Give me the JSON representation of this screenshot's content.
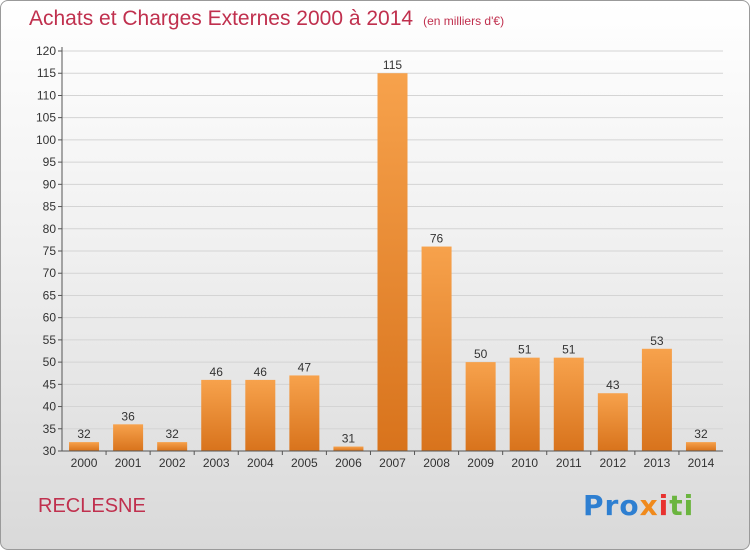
{
  "header": {
    "title": "Achats et Charges Externes 2000 à 2014",
    "subtitle": "(en milliers d'€)"
  },
  "footer": {
    "commune": "RECLESNE",
    "logo": [
      "Pro",
      "x",
      "i",
      "ti"
    ]
  },
  "colors": {
    "bar_light": "#f7a24c",
    "bar_dark": "#d8731c",
    "title": "#c0304e"
  },
  "chart_data": {
    "type": "bar",
    "categories": [
      "2000",
      "2001",
      "2002",
      "2003",
      "2004",
      "2005",
      "2006",
      "2007",
      "2008",
      "2009",
      "2010",
      "2011",
      "2012",
      "2013",
      "2014"
    ],
    "values": [
      32,
      36,
      32,
      46,
      46,
      47,
      31,
      115,
      76,
      50,
      51,
      51,
      43,
      53,
      32
    ],
    "ylim": [
      30,
      120
    ],
    "yticks": [
      30,
      35,
      40,
      45,
      50,
      55,
      60,
      65,
      70,
      75,
      80,
      85,
      90,
      95,
      100,
      105,
      110,
      115,
      120
    ],
    "grid": true,
    "legend": "none"
  }
}
